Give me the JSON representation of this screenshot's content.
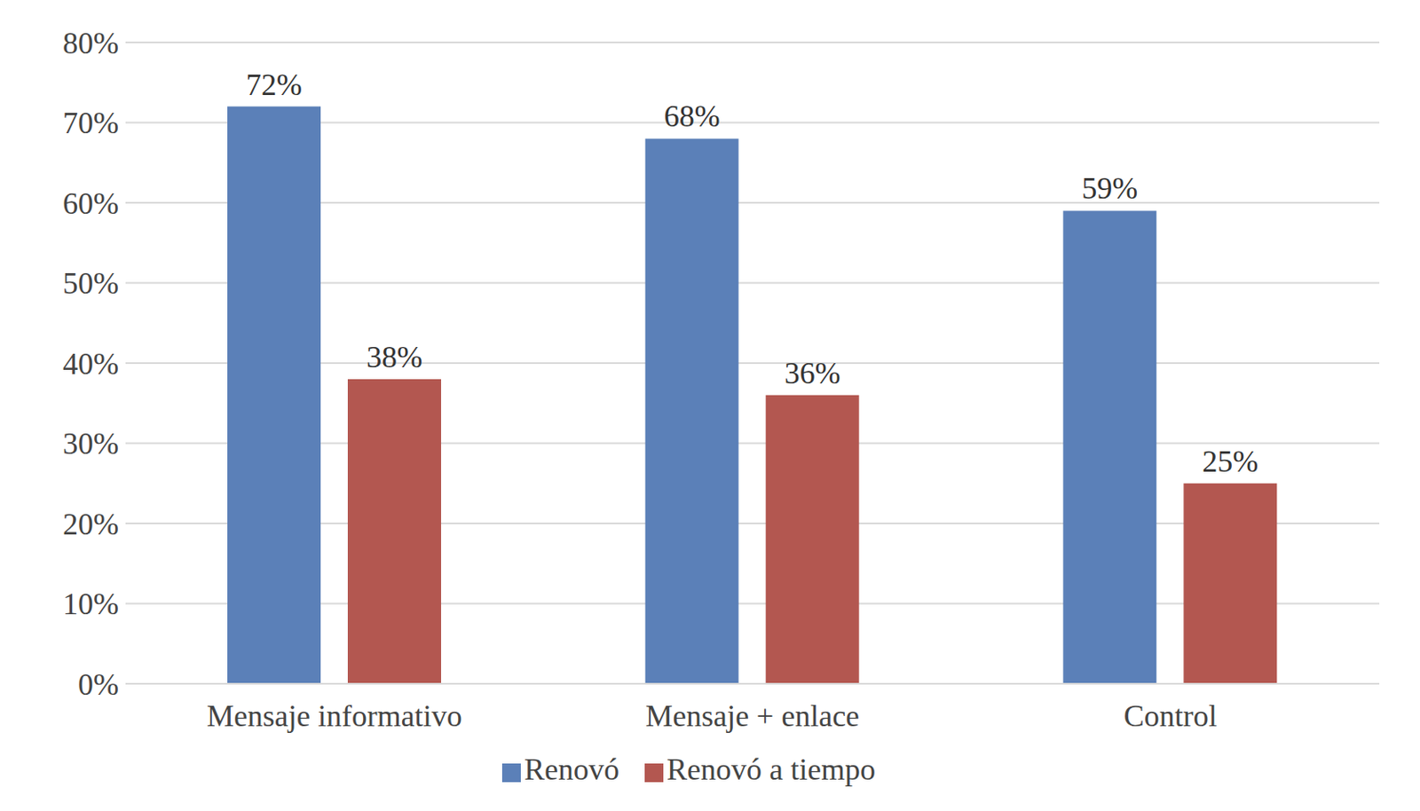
{
  "chart_data": {
    "type": "bar",
    "categories": [
      "Mensaje informativo",
      "Mensaje + enlace",
      "Control"
    ],
    "series": [
      {
        "name": "Renovó",
        "color": "#5b80b8",
        "values": [
          72,
          68,
          59
        ],
        "value_labels": [
          "72%",
          "68%",
          "59%"
        ]
      },
      {
        "name": "Renovó a tiempo",
        "color": "#b35750",
        "values": [
          38,
          36,
          25
        ],
        "value_labels": [
          "38%",
          "36%",
          "25%"
        ]
      }
    ],
    "ylim": [
      0,
      80
    ],
    "yticks": [
      {
        "value": 0,
        "label": "0%"
      },
      {
        "value": 10,
        "label": "10%"
      },
      {
        "value": 20,
        "label": "20%"
      },
      {
        "value": 30,
        "label": "30%"
      },
      {
        "value": 40,
        "label": "40%"
      },
      {
        "value": 50,
        "label": "50%"
      },
      {
        "value": 60,
        "label": "60%"
      },
      {
        "value": 70,
        "label": "70%"
      },
      {
        "value": 80,
        "label": "80%"
      }
    ],
    "grid": true,
    "legend": "bottom",
    "data_labels": true
  }
}
